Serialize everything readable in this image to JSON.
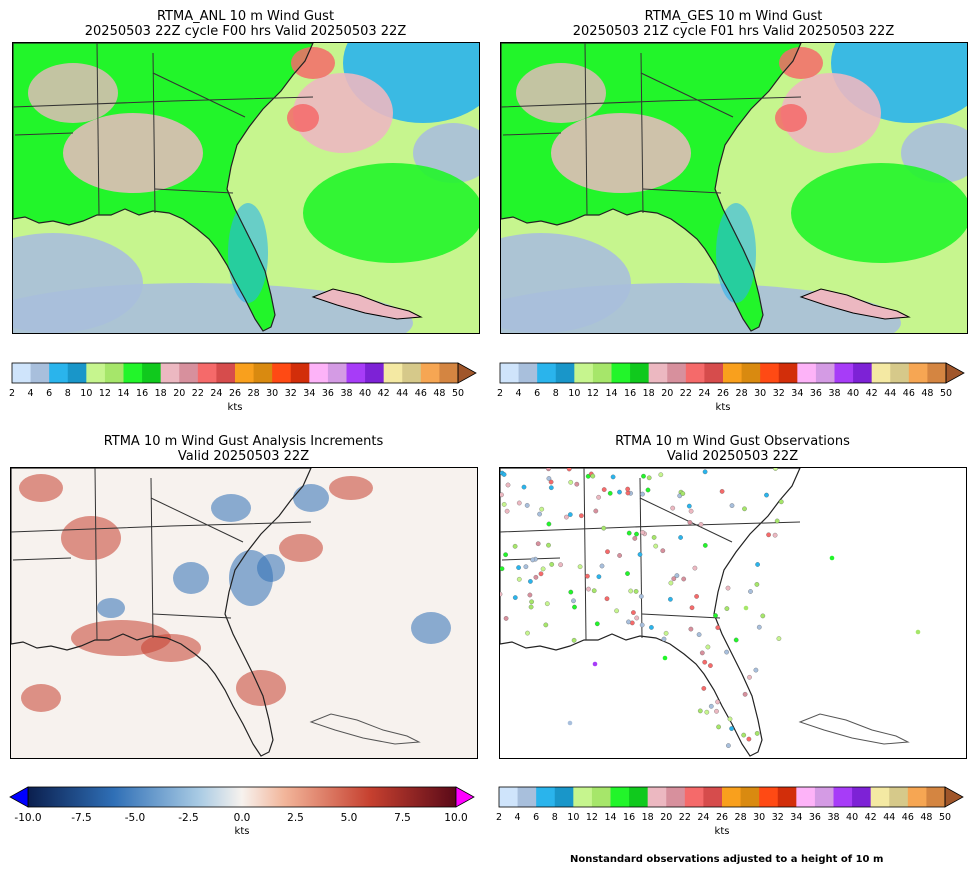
{
  "panels": {
    "anl": {
      "title_line1": "RTMA_ANL 10 m Wind Gust",
      "title_line2": "20250503 22Z cycle F00 hrs Valid 20250503 22Z"
    },
    "ges": {
      "title_line1": "RTMA_GES 10 m Wind Gust",
      "title_line2": "20250503 21Z cycle F01 hrs Valid 20250503 22Z"
    },
    "inc": {
      "title_line1": "RTMA 10 m Wind Gust Analysis Increments",
      "title_line2": "Valid 20250503 22Z"
    },
    "obs": {
      "title_line1": "RTMA 10 m Wind Gust Observations",
      "title_line2": "Valid 20250503 22Z"
    }
  },
  "gust_colorbar": {
    "unit": "kts",
    "ticks": [
      "2",
      "4",
      "6",
      "8",
      "10",
      "12",
      "14",
      "16",
      "18",
      "20",
      "22",
      "24",
      "26",
      "28",
      "30",
      "32",
      "34",
      "36",
      "38",
      "40",
      "42",
      "44",
      "46",
      "48",
      "50"
    ],
    "colors": [
      "#cfe4fb",
      "#a8bfdc",
      "#2ab4ec",
      "#1996c9",
      "#c6f58e",
      "#a6e66a",
      "#22f52a",
      "#10c91d",
      "#ecb8c1",
      "#d7909d",
      "#f56a6a",
      "#d64c4c",
      "#f9a01d",
      "#d98a10",
      "#ff4a14",
      "#d22e0a",
      "#fdb3f8",
      "#d49be4",
      "#a73cf8",
      "#7d22d6",
      "#f4e9a3",
      "#d6c98a",
      "#f6a653",
      "#d48541"
    ],
    "extend_color": "#a0562a"
  },
  "increment_colorbar": {
    "unit": "kts",
    "ticks": [
      "-10.0",
      "-7.5",
      "-5.0",
      "-2.5",
      "0.0",
      "2.5",
      "5.0",
      "7.5",
      "10.0"
    ],
    "under_color": "#0000ff",
    "over_color": "#ff00ff"
  },
  "footnote": "Nonstandard observations adjusted to a height of 10 m",
  "map_colors": {
    "ocean_calm": "#a9bfdb",
    "ocean_light": "#2ab4ec",
    "green_light": "#c6f58e",
    "green": "#22f52a",
    "pink": "#ecb8c1",
    "red": "#f56a6a",
    "inc_blue": "#2f6fb6",
    "inc_red": "#c6402f",
    "inc_base": "#f7f2ee"
  }
}
